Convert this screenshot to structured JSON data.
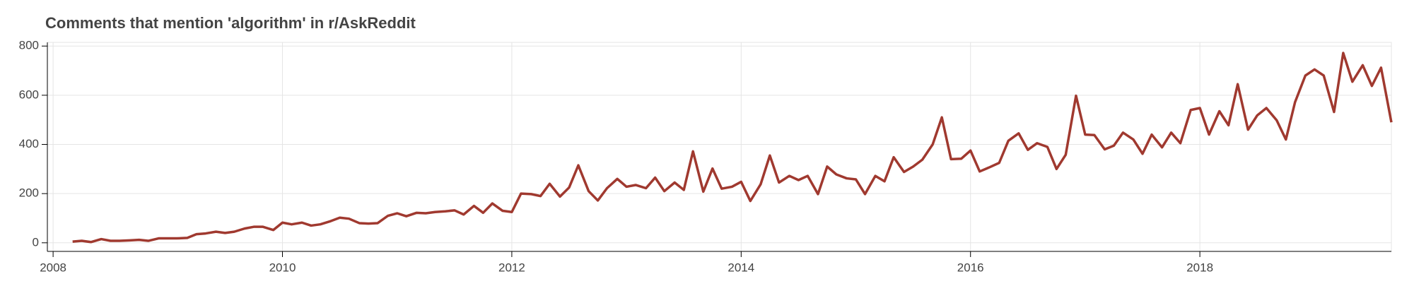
{
  "chart_data": {
    "type": "line",
    "title": "Comments that mention 'algorithm' in r/AskReddit",
    "x": [
      2008.17,
      2008.25,
      2008.33,
      2008.42,
      2008.5,
      2008.58,
      2008.67,
      2008.75,
      2008.83,
      2008.92,
      2009.0,
      2009.08,
      2009.17,
      2009.25,
      2009.33,
      2009.42,
      2009.5,
      2009.58,
      2009.67,
      2009.75,
      2009.83,
      2009.92,
      2010.0,
      2010.08,
      2010.17,
      2010.25,
      2010.33,
      2010.42,
      2010.5,
      2010.58,
      2010.67,
      2010.75,
      2010.83,
      2010.92,
      2011.0,
      2011.08,
      2011.17,
      2011.25,
      2011.33,
      2011.42,
      2011.5,
      2011.58,
      2011.67,
      2011.75,
      2011.83,
      2011.92,
      2012.0,
      2012.08,
      2012.17,
      2012.25,
      2012.33,
      2012.42,
      2012.5,
      2012.58,
      2012.67,
      2012.75,
      2012.83,
      2012.92,
      2013.0,
      2013.08,
      2013.17,
      2013.25,
      2013.33,
      2013.42,
      2013.5,
      2013.58,
      2013.67,
      2013.75,
      2013.83,
      2013.92,
      2014.0,
      2014.08,
      2014.17,
      2014.25,
      2014.33,
      2014.42,
      2014.5,
      2014.58,
      2014.67,
      2014.75,
      2014.83,
      2014.92,
      2015.0,
      2015.08,
      2015.17,
      2015.25,
      2015.33,
      2015.42,
      2015.5,
      2015.58,
      2015.67,
      2015.75,
      2015.83,
      2015.92,
      2016.0,
      2016.08,
      2016.17,
      2016.25,
      2016.33,
      2016.42,
      2016.5,
      2016.58,
      2016.67,
      2016.75,
      2016.83,
      2016.92,
      2017.0,
      2017.08,
      2017.17,
      2017.25,
      2017.33,
      2017.42,
      2017.5,
      2017.58,
      2017.67,
      2017.75,
      2017.83,
      2017.92,
      2018.0,
      2018.08,
      2018.17,
      2018.25,
      2018.33,
      2018.42,
      2018.5,
      2018.58,
      2018.67,
      2018.75,
      2018.83,
      2018.92,
      2019.0,
      2019.08,
      2019.17,
      2019.25,
      2019.33,
      2019.42,
      2019.5,
      2019.58,
      2019.67
    ],
    "values": [
      5,
      8,
      3,
      15,
      8,
      8,
      10,
      12,
      8,
      18,
      18,
      18,
      20,
      35,
      38,
      45,
      40,
      45,
      58,
      65,
      65,
      52,
      82,
      75,
      82,
      70,
      75,
      88,
      102,
      98,
      80,
      78,
      80,
      110,
      120,
      108,
      122,
      120,
      125,
      128,
      132,
      115,
      150,
      122,
      160,
      130,
      125,
      200,
      198,
      190,
      240,
      188,
      225,
      315,
      210,
      172,
      222,
      260,
      228,
      235,
      222,
      265,
      210,
      245,
      215,
      372,
      208,
      302,
      220,
      228,
      248,
      170,
      238,
      355,
      245,
      272,
      255,
      272,
      198,
      310,
      278,
      262,
      258,
      198,
      272,
      250,
      348,
      288,
      310,
      338,
      400,
      510,
      340,
      342,
      375,
      290,
      308,
      325,
      415,
      445,
      378,
      405,
      390,
      300,
      358,
      598,
      440,
      438,
      380,
      395,
      448,
      420,
      362,
      440,
      388,
      448,
      405,
      540,
      548,
      440,
      535,
      478,
      645,
      460,
      518,
      548,
      498,
      420,
      572,
      680,
      705,
      680,
      532,
      772,
      655,
      722,
      638,
      712,
      490
    ],
    "color": "#a0392f",
    "xlim": [
      2007.95,
      2019.67
    ],
    "xticks": [
      2008,
      2010,
      2012,
      2014,
      2016,
      2018
    ],
    "ylim": [
      -35,
      815
    ],
    "yticks": [
      0,
      200,
      400,
      600,
      800
    ],
    "grid": true
  }
}
